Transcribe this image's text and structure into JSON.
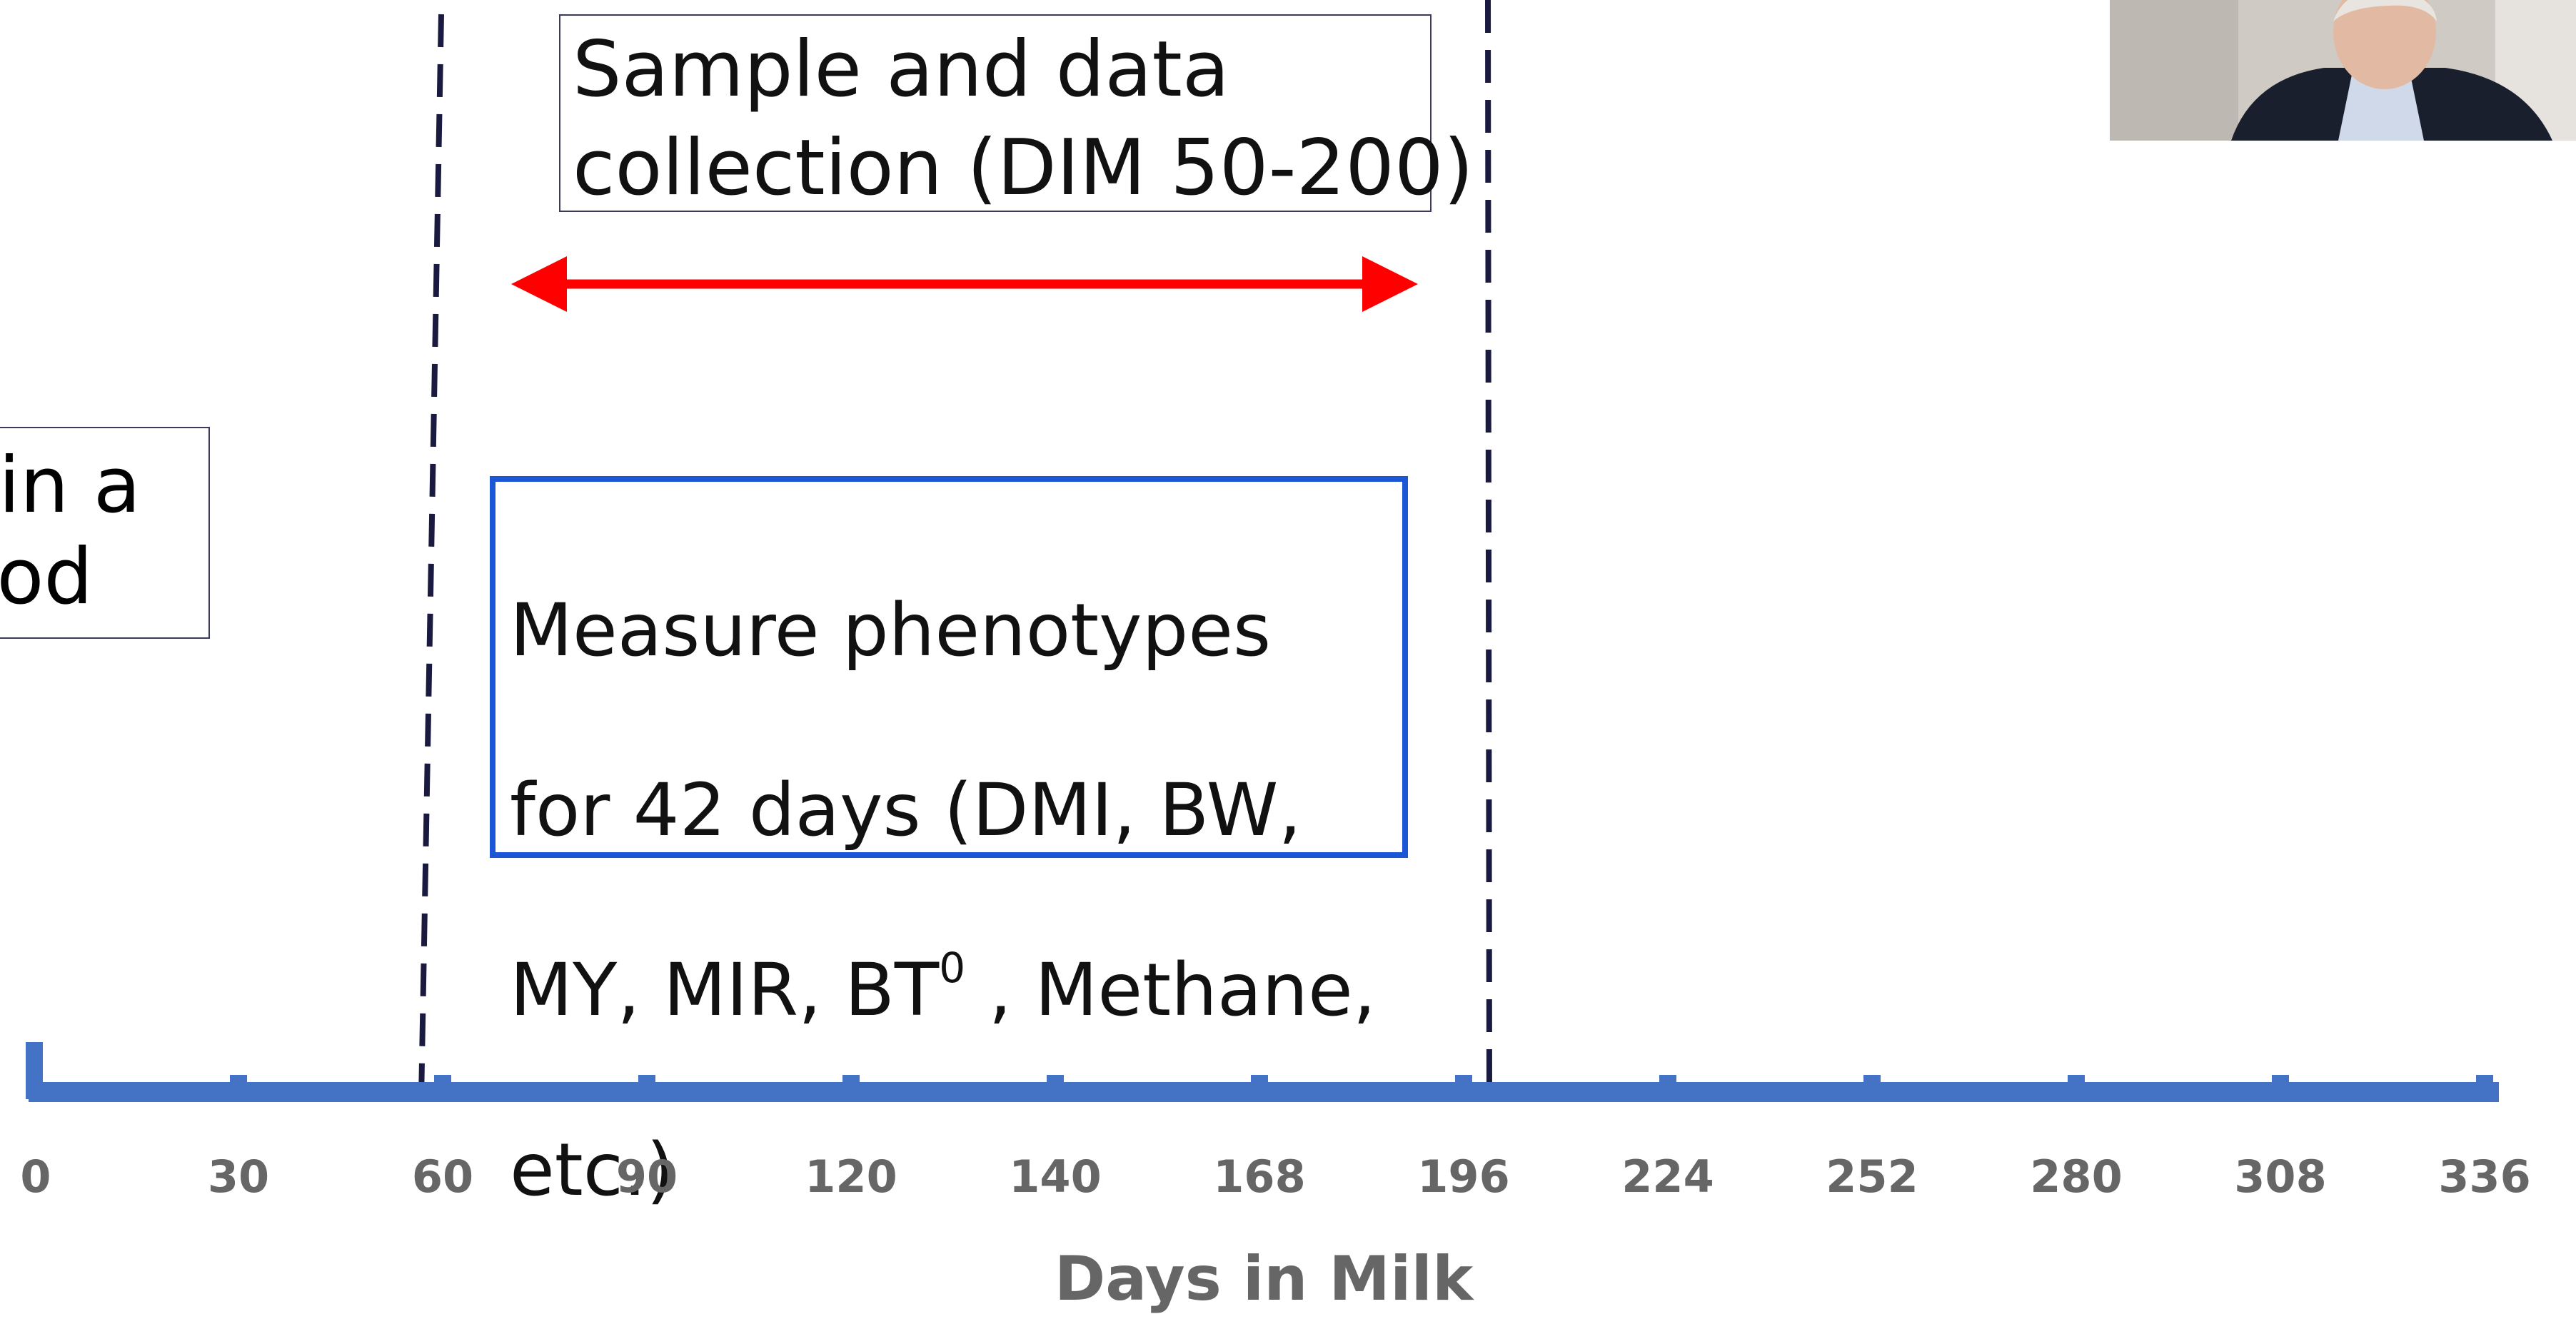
{
  "diagram": {
    "partial_box": {
      "line1": "in a",
      "line2": "od"
    },
    "sample_box": {
      "line1": "Sample and data",
      "line2": "collection (DIM 50-200)"
    },
    "measure_box": {
      "line1": "Measure phenotypes",
      "line2": "for 42 days (DMI, BW,",
      "line3a": "MY, MIR, BT",
      "line3_sup": "0",
      "line3b": " , Methane,",
      "line4": "etc.)"
    },
    "axis": {
      "ticks": [
        "0",
        "30",
        "60",
        "90",
        "120",
        "140",
        "168",
        "196",
        "224",
        "252",
        "280",
        "308",
        "336"
      ],
      "label": "Days in Milk"
    },
    "colors": {
      "axis": "#4472c4",
      "arrow": "#ff0000",
      "dashed_line": "#1a1a40",
      "measure_border": "#1a56d6"
    }
  }
}
